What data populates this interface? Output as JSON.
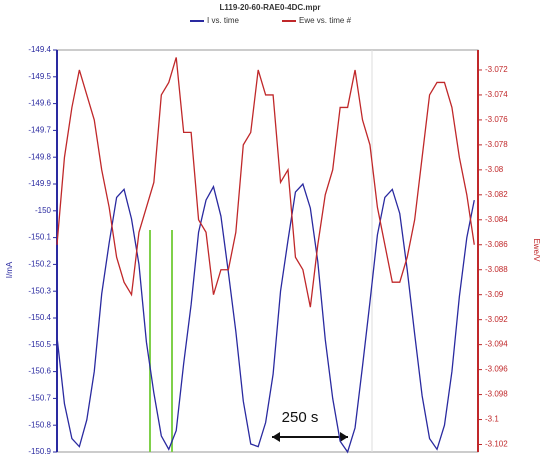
{
  "chart_data": {
    "type": "line",
    "title": "L119-20-60-RAE0-4DC.mpr",
    "ylabel": "I/mA",
    "y2label": "Ewe/V",
    "annotation": "250 s",
    "x": [
      0,
      20,
      40,
      60,
      80,
      100,
      120,
      140,
      160,
      180,
      200,
      220,
      240,
      260,
      280,
      300,
      320,
      340,
      360,
      380,
      400,
      420,
      440,
      460,
      480,
      500,
      520,
      540,
      560,
      580,
      600,
      620,
      640,
      660,
      680,
      700,
      720,
      740,
      760,
      780,
      800,
      820,
      840,
      860,
      880,
      900,
      920,
      940,
      960,
      980,
      1000,
      1020,
      1040,
      1060,
      1080,
      1100,
      1120
    ],
    "xlim": [
      0,
      1130
    ],
    "ylim": [
      -150.9,
      -149.4
    ],
    "yticks": [
      -149.4,
      -149.5,
      -149.6,
      -149.7,
      -149.8,
      -149.9,
      -150,
      -150.1,
      -150.2,
      -150.3,
      -150.4,
      -150.5,
      -150.6,
      -150.7,
      -150.8,
      -150.9
    ],
    "y2lim": [
      -3.1026,
      -3.0704
    ],
    "y2ticks": [
      -3.072,
      -3.074,
      -3.076,
      -3.078,
      -3.08,
      -3.082,
      -3.084,
      -3.086,
      -3.088,
      -3.09,
      -3.092,
      -3.094,
      -3.096,
      -3.098,
      -3.1,
      -3.102
    ],
    "series": [
      {
        "name": "I vs. time",
        "color": "#2a2aa0",
        "values": [
          -150.47,
          -150.72,
          -150.85,
          -150.88,
          -150.78,
          -150.6,
          -150.31,
          -150.12,
          -149.95,
          -149.92,
          -150.03,
          -150.2,
          -150.49,
          -150.68,
          -150.84,
          -150.89,
          -150.82,
          -150.57,
          -150.35,
          -150.08,
          -149.96,
          -149.91,
          -150.02,
          -150.23,
          -150.45,
          -150.71,
          -150.87,
          -150.88,
          -150.79,
          -150.61,
          -150.3,
          -150.11,
          -149.93,
          -149.9,
          -149.99,
          -150.19,
          -150.48,
          -150.7,
          -150.86,
          -150.9,
          -150.81,
          -150.58,
          -150.34,
          -150.09,
          -149.95,
          -149.92,
          -150.01,
          -150.22,
          -150.46,
          -150.69,
          -150.85,
          -150.89,
          -150.8,
          -150.6,
          -150.32,
          -150.1,
          -149.96
        ]
      },
      {
        "name": "Ewe vs. time #",
        "color": "#c0282a",
        "axis": "y2",
        "values": [
          -3.086,
          -3.079,
          -3.075,
          -3.072,
          -3.074,
          -3.076,
          -3.08,
          -3.083,
          -3.087,
          -3.089,
          -3.09,
          -3.085,
          -3.083,
          -3.081,
          -3.074,
          -3.073,
          -3.071,
          -3.077,
          -3.077,
          -3.084,
          -3.085,
          -3.09,
          -3.088,
          -3.088,
          -3.085,
          -3.078,
          -3.077,
          -3.072,
          -3.074,
          -3.074,
          -3.081,
          -3.08,
          -3.087,
          -3.088,
          -3.091,
          -3.086,
          -3.082,
          -3.08,
          -3.075,
          -3.075,
          -3.072,
          -3.076,
          -3.078,
          -3.083,
          -3.086,
          -3.089,
          -3.089,
          -3.087,
          -3.084,
          -3.079,
          -3.074,
          -3.073,
          -3.073,
          -3.075,
          -3.079,
          -3.082,
          -3.086
        ]
      }
    ]
  }
}
